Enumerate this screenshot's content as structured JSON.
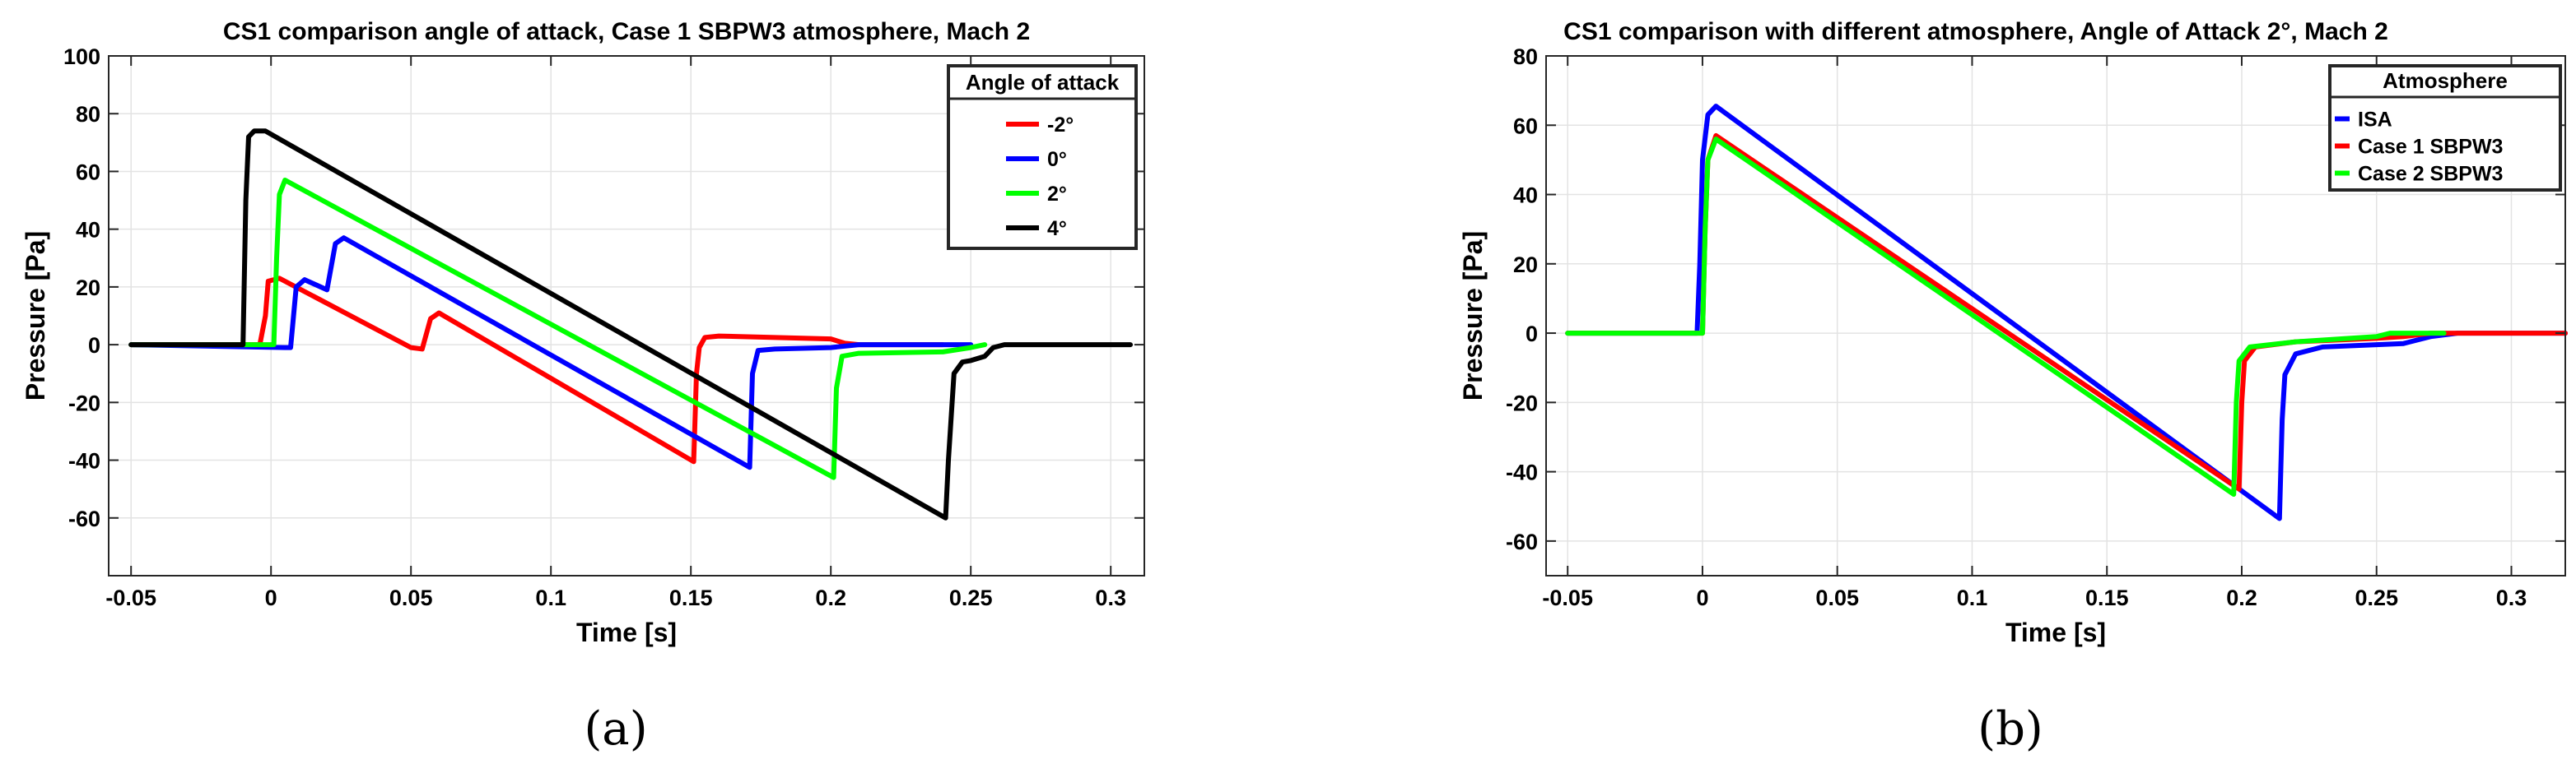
{
  "chart_data": [
    {
      "panel_label": "(a)",
      "type": "line",
      "title": "CS1 comparison angle of attack, Case 1 SBPW3 atmosphere, Mach 2",
      "xlabel": "Time [s]",
      "ylabel": "Pressure [Pa]",
      "xlim": [
        -0.058,
        0.312
      ],
      "ylim": [
        -80,
        100
      ],
      "xticks": [
        -0.05,
        0,
        0.05,
        0.1,
        0.15,
        0.2,
        0.25,
        0.3
      ],
      "xtick_labels": [
        "-0.05",
        "0",
        "0.05",
        "0.1",
        "0.15",
        "0.2",
        "0.25",
        "0.3"
      ],
      "yticks": [
        -60,
        -40,
        -20,
        0,
        20,
        40,
        60,
        80,
        100
      ],
      "ytick_labels": [
        "-60",
        "-40",
        "-20",
        "0",
        "20",
        "40",
        "60",
        "80",
        "100"
      ],
      "grid": true,
      "legend": {
        "title": "Angle of attack",
        "position": "top-right"
      },
      "series": [
        {
          "name": "-2°",
          "color": "#ff0000",
          "points": [
            [
              -0.05,
              0
            ],
            [
              -0.004,
              0
            ],
            [
              -0.002,
              10
            ],
            [
              -0.001,
              22
            ],
            [
              0.003,
              23
            ],
            [
              0.05,
              -1
            ],
            [
              0.054,
              -1.5
            ],
            [
              0.057,
              9
            ],
            [
              0.06,
              11
            ],
            [
              0.151,
              -40.5
            ],
            [
              0.152,
              -10
            ],
            [
              0.153,
              -1
            ],
            [
              0.155,
              2.5
            ],
            [
              0.16,
              3
            ],
            [
              0.2,
              2
            ],
            [
              0.205,
              0.5
            ],
            [
              0.21,
              0
            ],
            [
              0.24,
              0
            ]
          ]
        },
        {
          "name": "0°",
          "color": "#0000ff",
          "points": [
            [
              -0.05,
              0
            ],
            [
              0.005,
              -1
            ],
            [
              0.007,
              -1
            ],
            [
              0.009,
              20
            ],
            [
              0.012,
              22.5
            ],
            [
              0.02,
              19
            ],
            [
              0.023,
              35
            ],
            [
              0.026,
              37
            ],
            [
              0.171,
              -42.5
            ],
            [
              0.172,
              -10
            ],
            [
              0.174,
              -2
            ],
            [
              0.18,
              -1.5
            ],
            [
              0.2,
              -1
            ],
            [
              0.21,
              0
            ],
            [
              0.24,
              0
            ],
            [
              0.25,
              0
            ]
          ]
        },
        {
          "name": "2°",
          "color": "#00ff00",
          "points": [
            [
              -0.05,
              0
            ],
            [
              0.001,
              0
            ],
            [
              0.002,
              30
            ],
            [
              0.003,
              52
            ],
            [
              0.005,
              57
            ],
            [
              0.201,
              -46
            ],
            [
              0.202,
              -15
            ],
            [
              0.204,
              -4
            ],
            [
              0.21,
              -3
            ],
            [
              0.24,
              -2.5
            ],
            [
              0.25,
              -1
            ],
            [
              0.255,
              0
            ]
          ]
        },
        {
          "name": "4°",
          "color": "#000000",
          "points": [
            [
              -0.05,
              0
            ],
            [
              -0.01,
              0
            ],
            [
              -0.009,
              50
            ],
            [
              -0.008,
              72
            ],
            [
              -0.006,
              74
            ],
            [
              -0.002,
              74
            ],
            [
              0.241,
              -60
            ],
            [
              0.242,
              -40
            ],
            [
              0.244,
              -10
            ],
            [
              0.247,
              -6
            ],
            [
              0.25,
              -5.5
            ],
            [
              0.255,
              -4
            ],
            [
              0.258,
              -1
            ],
            [
              0.262,
              0
            ],
            [
              0.307,
              0
            ]
          ]
        }
      ]
    },
    {
      "panel_label": "(b)",
      "type": "line",
      "title": "CS1 comparison with different atmosphere, Angle of Attack 2°, Mach 2",
      "xlabel": "Time [s]",
      "ylabel": "Pressure [Pa]",
      "xlim": [
        -0.058,
        0.32
      ],
      "ylim": [
        -70,
        80
      ],
      "xticks": [
        -0.05,
        0,
        0.05,
        0.1,
        0.15,
        0.2,
        0.25,
        0.3
      ],
      "xtick_labels": [
        "-0.05",
        "0",
        "0.05",
        "0.1",
        "0.15",
        "0.2",
        "0.25",
        "0.3"
      ],
      "yticks": [
        -60,
        -40,
        -20,
        0,
        20,
        40,
        60,
        80
      ],
      "ytick_labels": [
        "-60",
        "-40",
        "-20",
        "0",
        "20",
        "40",
        "60",
        "80"
      ],
      "grid": true,
      "legend": {
        "title": "Atmosphere",
        "position": "top-right"
      },
      "series": [
        {
          "name": "ISA",
          "color": "#0000ff",
          "points": [
            [
              -0.05,
              0
            ],
            [
              -0.002,
              0
            ],
            [
              -0.001,
              20
            ],
            [
              0,
              50
            ],
            [
              0.002,
              63
            ],
            [
              0.005,
              65.5
            ],
            [
              0.214,
              -53.5
            ],
            [
              0.215,
              -25
            ],
            [
              0.216,
              -12
            ],
            [
              0.22,
              -6
            ],
            [
              0.23,
              -4
            ],
            [
              0.26,
              -3
            ],
            [
              0.265,
              -2
            ],
            [
              0.27,
              -1
            ],
            [
              0.28,
              0
            ],
            [
              0.32,
              0
            ]
          ]
        },
        {
          "name": "Case 1 SBPW3",
          "color": "#ff0000",
          "points": [
            [
              -0.05,
              0
            ],
            [
              0,
              0
            ],
            [
              0.001,
              30
            ],
            [
              0.002,
              50
            ],
            [
              0.005,
              57
            ],
            [
              0.199,
              -45
            ],
            [
              0.2,
              -20
            ],
            [
              0.201,
              -8
            ],
            [
              0.205,
              -4
            ],
            [
              0.22,
              -2.5
            ],
            [
              0.25,
              -1.5
            ],
            [
              0.26,
              -1
            ],
            [
              0.27,
              0
            ],
            [
              0.32,
              0
            ]
          ]
        },
        {
          "name": "Case 2 SBPW3",
          "color": "#00ff00",
          "points": [
            [
              -0.05,
              0
            ],
            [
              0,
              0
            ],
            [
              0.001,
              30
            ],
            [
              0.002,
              50
            ],
            [
              0.005,
              56
            ],
            [
              0.197,
              -46.5
            ],
            [
              0.198,
              -20
            ],
            [
              0.199,
              -8
            ],
            [
              0.203,
              -4
            ],
            [
              0.22,
              -2.5
            ],
            [
              0.25,
              -1
            ],
            [
              0.255,
              0
            ],
            [
              0.275,
              0
            ]
          ]
        }
      ]
    }
  ]
}
